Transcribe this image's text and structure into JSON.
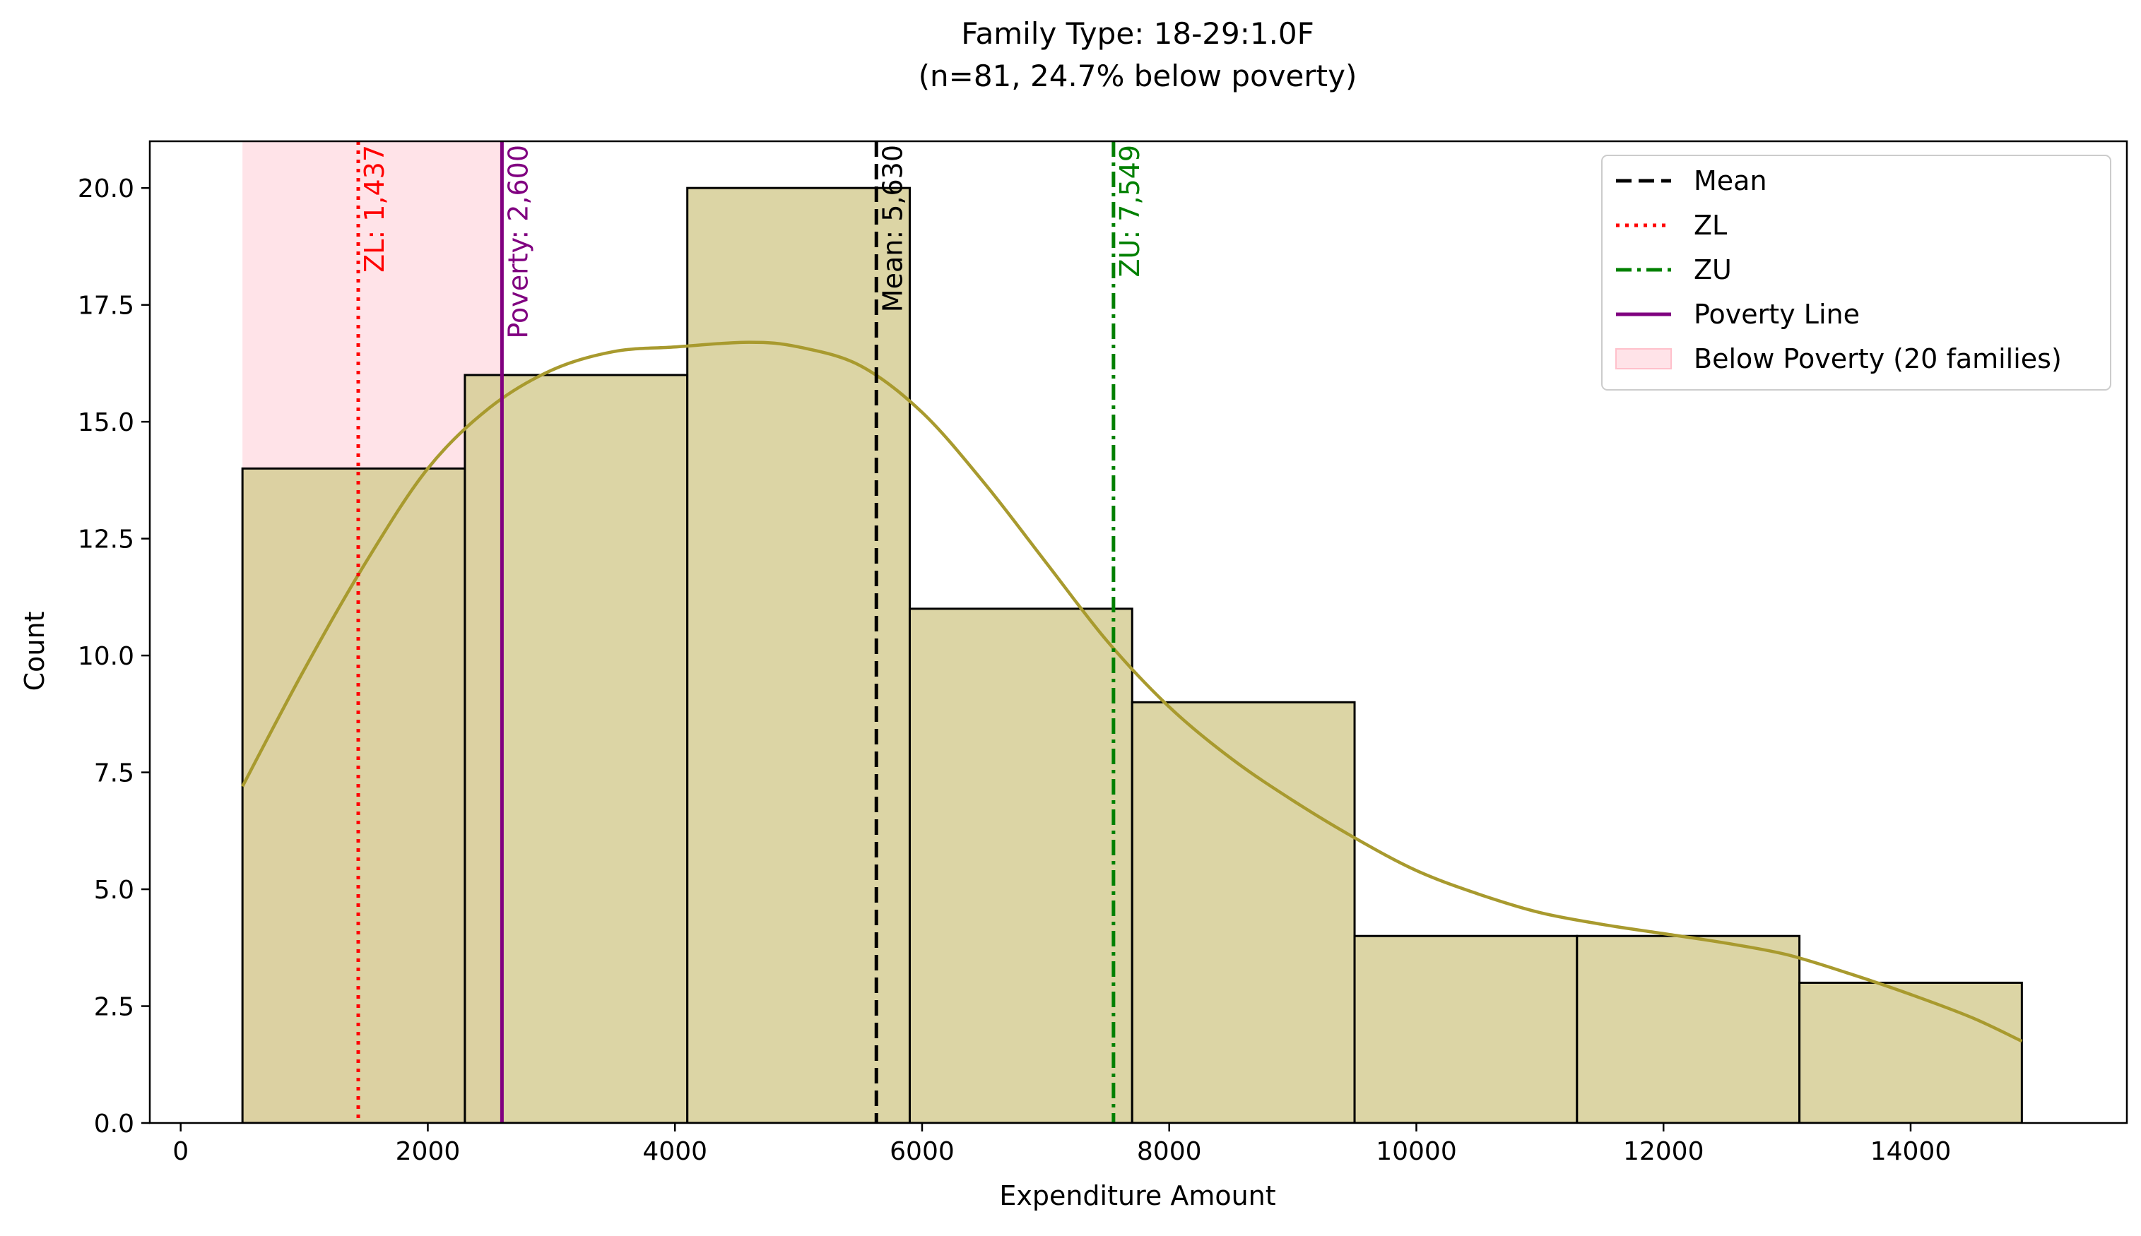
{
  "chart_data": {
    "type": "bar",
    "title": "Family Type: 18-29:1.0F",
    "subtitle": "(n=81, 24.7% below poverty)",
    "xlabel": "Expenditure Amount",
    "ylabel": "Count",
    "xlim": [
      -250,
      15750
    ],
    "ylim": [
      0,
      21
    ],
    "x_ticks": [
      0,
      2000,
      4000,
      6000,
      8000,
      10000,
      12000,
      14000
    ],
    "x_tick_labels": [
      "0",
      "2000",
      "4000",
      "6000",
      "8000",
      "10000",
      "12000",
      "14000"
    ],
    "y_ticks": [
      0,
      2.5,
      5,
      7.5,
      10,
      12.5,
      15,
      17.5,
      20
    ],
    "y_tick_labels": [
      "0.0",
      "2.5",
      "5.0",
      "7.5",
      "10.0",
      "12.5",
      "15.0",
      "17.5",
      "20.0"
    ],
    "grid": false,
    "legend_placement": "top-right",
    "bins": [
      {
        "x0": 500,
        "x1": 2300,
        "count": 14
      },
      {
        "x0": 2300,
        "x1": 4100,
        "count": 16
      },
      {
        "x0": 4100,
        "x1": 5900,
        "count": 20
      },
      {
        "x0": 5900,
        "x1": 7700,
        "count": 11
      },
      {
        "x0": 7700,
        "x1": 9500,
        "count": 9
      },
      {
        "x0": 9500,
        "x1": 11300,
        "count": 4
      },
      {
        "x0": 11300,
        "x1": 13100,
        "count": 4
      },
      {
        "x0": 13100,
        "x1": 14900,
        "count": 3
      }
    ],
    "kde": {
      "x": [
        500,
        1000,
        1500,
        2000,
        2500,
        3000,
        3500,
        4000,
        4600,
        5000,
        5500,
        6000,
        6500,
        7000,
        7500,
        8000,
        8500,
        9000,
        9500,
        10000,
        10500,
        11000,
        11500,
        12000,
        12500,
        13000,
        13500,
        14000,
        14500,
        14900
      ],
      "y": [
        7.2,
        9.7,
        12.0,
        14.0,
        15.3,
        16.1,
        16.5,
        16.6,
        16.7,
        16.6,
        16.2,
        15.2,
        13.7,
        12.0,
        10.3,
        8.9,
        7.8,
        6.9,
        6.1,
        5.4,
        4.9,
        4.5,
        4.25,
        4.05,
        3.85,
        3.6,
        3.2,
        2.75,
        2.25,
        1.75
      ]
    },
    "below_poverty_span": {
      "x0": 500,
      "x1": 2600
    },
    "vlines": [
      {
        "name": "Mean",
        "x": 5630,
        "label": "Mean: 5,630",
        "color": "#000000",
        "style": "dashed"
      },
      {
        "name": "ZL",
        "x": 1437,
        "label": "ZL: 1,437",
        "color": "#ff0000",
        "style": "dotted"
      },
      {
        "name": "ZU",
        "x": 7549,
        "label": "ZU: 7,549",
        "color": "#008000",
        "style": "dashdot"
      },
      {
        "name": "Poverty Line",
        "x": 2600,
        "label": "Poverty: 2,600",
        "color": "#800080",
        "style": "solid"
      }
    ],
    "legend": [
      {
        "label": "Mean",
        "color": "#000000",
        "style": "dashed"
      },
      {
        "label": "ZL",
        "color": "#ff0000",
        "style": "dotted"
      },
      {
        "label": "ZU",
        "color": "#008000",
        "style": "dashdot"
      },
      {
        "label": "Poverty Line",
        "color": "#800080",
        "style": "solid"
      },
      {
        "label": "Below Poverty (20 families)",
        "color": "#ffc0cb",
        "style": "patch"
      }
    ],
    "colors": {
      "bar_fill": "#d6ce95",
      "bar_edge": "#000000",
      "kde_line": "#a89a2e",
      "poverty_span": "#ffc0cb"
    }
  }
}
